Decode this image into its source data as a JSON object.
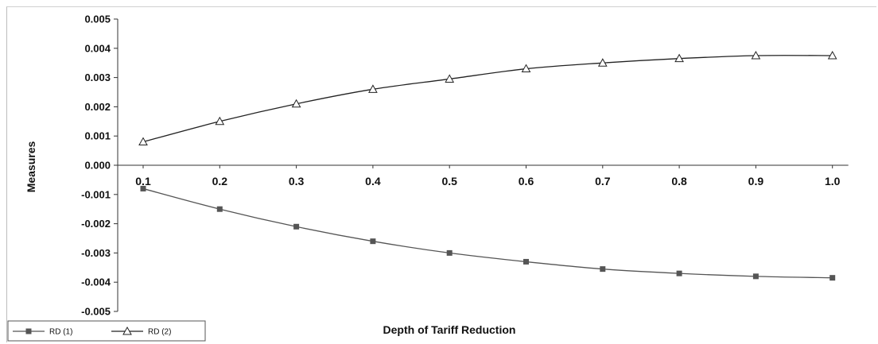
{
  "chart_data": {
    "type": "line",
    "title": "",
    "xlabel": "Depth of Tariff Reduction",
    "ylabel": "Measures",
    "categories": [
      "0.1",
      "0.2",
      "0.3",
      "0.4",
      "0.5",
      "0.6",
      "0.7",
      "0.8",
      "0.9",
      "1.0"
    ],
    "ylim": [
      -0.005,
      0.005
    ],
    "yticks": [
      "0.005",
      "0.004",
      "0.003",
      "0.002",
      "0.001",
      "0.000",
      "-0.001",
      "-0.002",
      "-0.003",
      "-0.004",
      "-0.005"
    ],
    "grid": false,
    "legend_position": "bottom-left",
    "series": [
      {
        "name": "RD (1)",
        "marker": "square",
        "color": "#555555",
        "values": [
          -0.0008,
          -0.0015,
          -0.0021,
          -0.0026,
          -0.003,
          -0.0033,
          -0.00355,
          -0.0037,
          -0.0038,
          -0.00385
        ]
      },
      {
        "name": "RD (2)",
        "marker": "triangle",
        "color": "#222222",
        "values": [
          0.0008,
          0.0015,
          0.0021,
          0.0026,
          0.00295,
          0.0033,
          0.0035,
          0.00365,
          0.00375,
          0.00375
        ]
      }
    ]
  }
}
